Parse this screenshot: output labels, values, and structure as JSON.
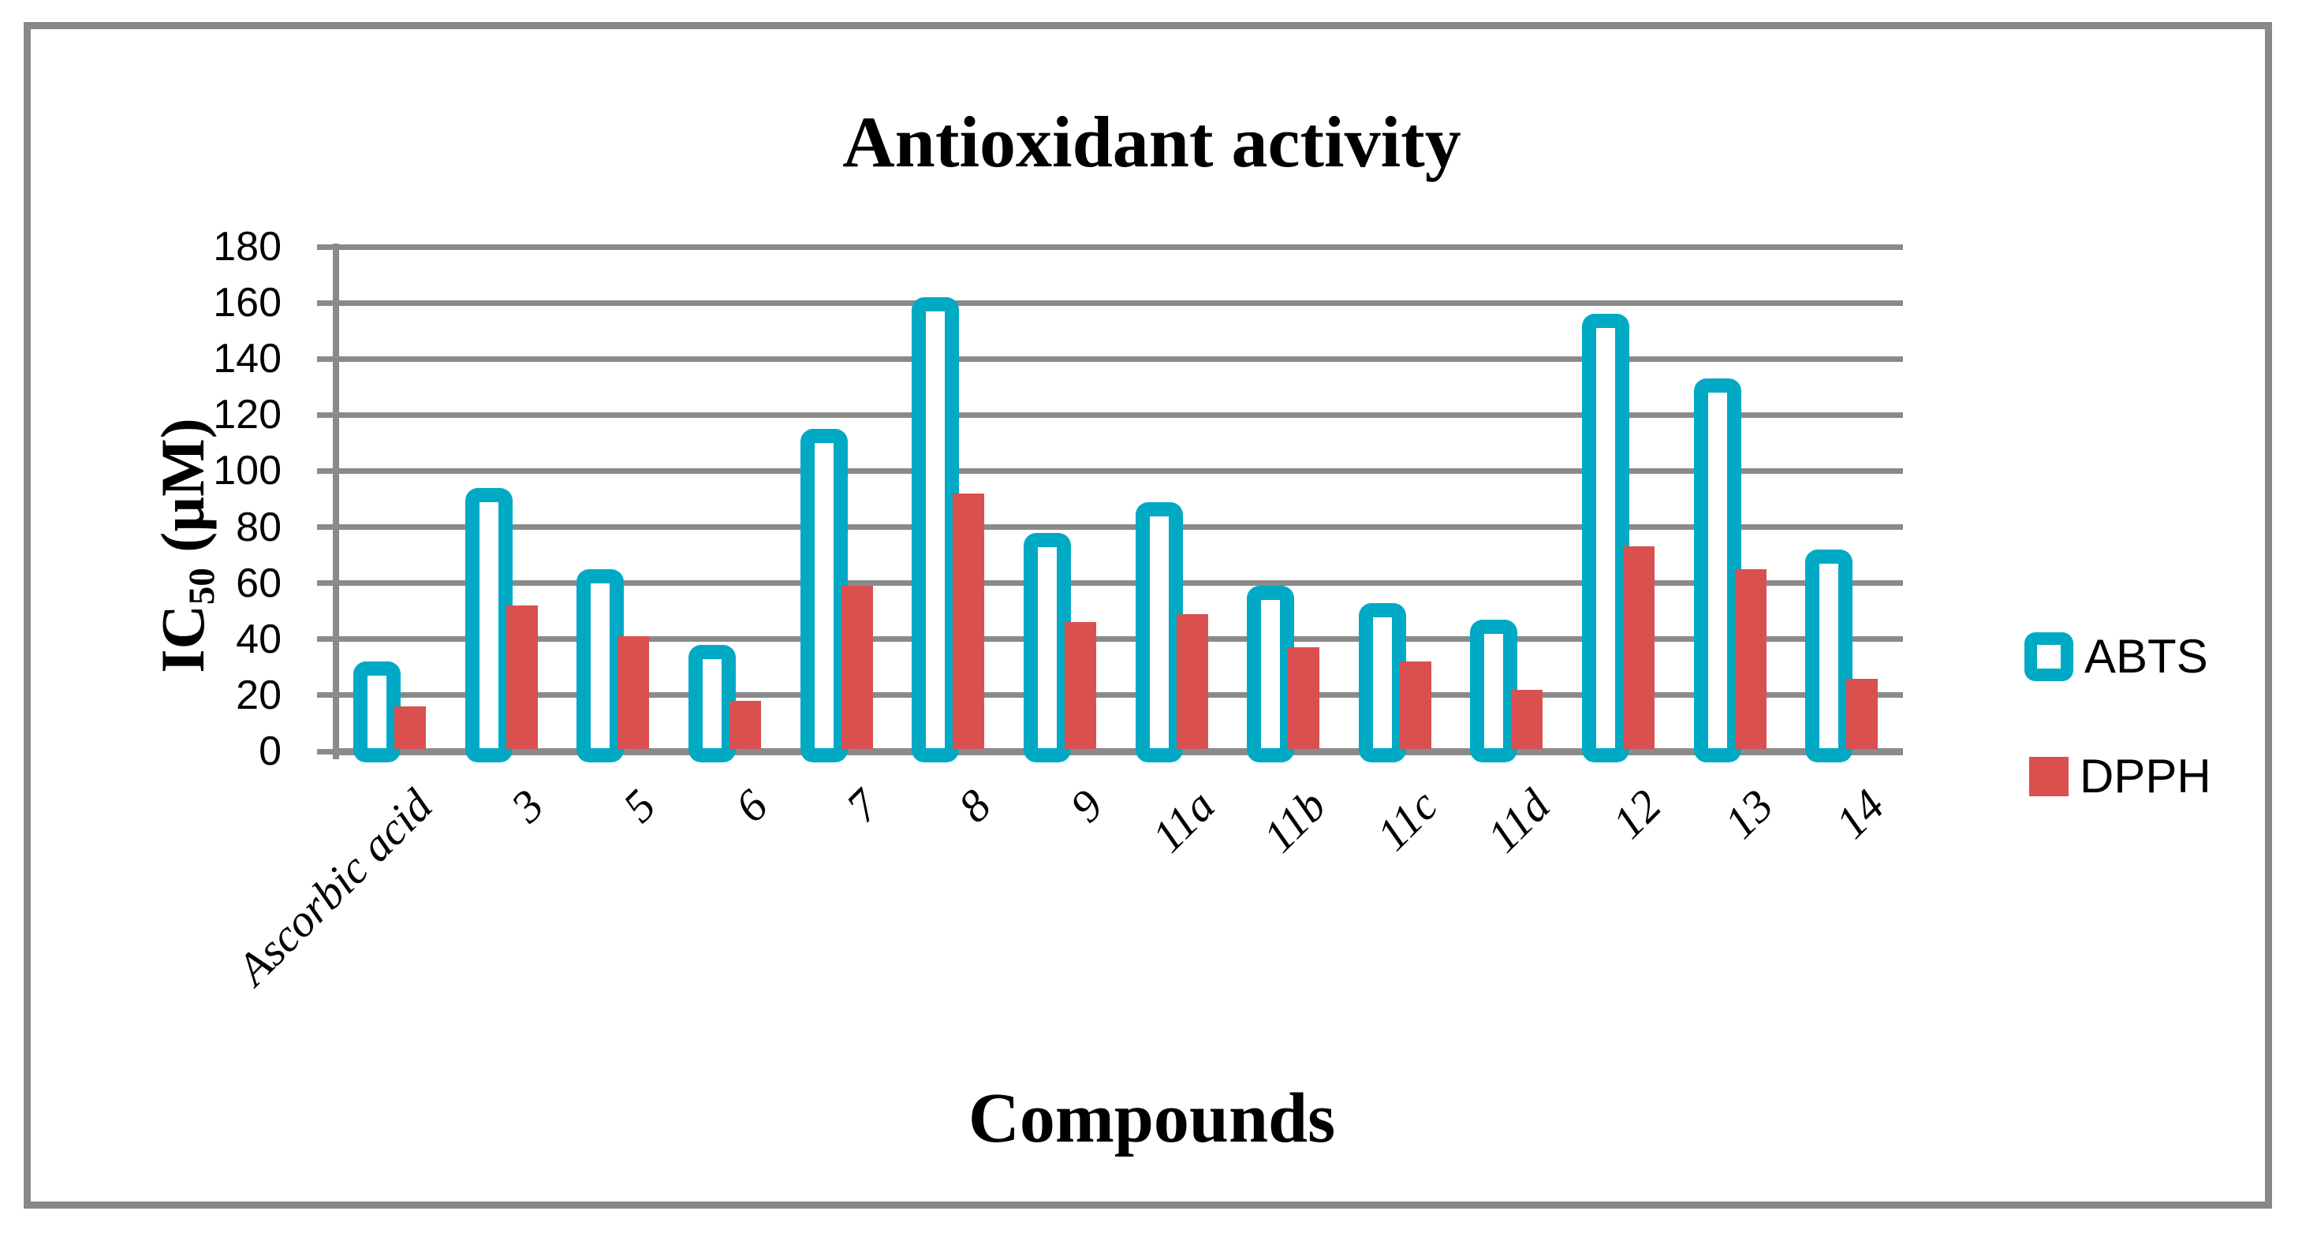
{
  "figure": {
    "frame_color": "#888888",
    "background": "#FFFFFF"
  },
  "chart_data": {
    "type": "bar",
    "title": "Antioxidant activity",
    "xlabel": "Compounds",
    "ylabel": {
      "base": "IC",
      "sub": "50",
      "unit": " (µM)"
    },
    "categories": [
      "Ascorbic acid",
      "3",
      "5",
      "6",
      "7",
      "8",
      "9",
      "11a",
      "11b",
      "11c",
      "11d",
      "12",
      "13",
      "14"
    ],
    "series": [
      {
        "name": "ABTS",
        "style": "outlined",
        "color": "#00A9C4",
        "values": [
          32,
          94,
          65,
          38,
          115,
          162,
          78,
          89,
          59,
          53,
          47,
          156,
          133,
          72
        ]
      },
      {
        "name": "DPPH",
        "style": "solid",
        "color": "#D9504F",
        "values": [
          16,
          52,
          41,
          18,
          59,
          92,
          46,
          49,
          37,
          32,
          22,
          73,
          65,
          26
        ]
      }
    ],
    "ylim": [
      0,
      180
    ],
    "yticks": [
      0,
      20,
      40,
      60,
      80,
      100,
      120,
      140,
      160,
      180
    ],
    "grid": "horizontal",
    "gridline_color": "#8A8A8A",
    "axis_color": "#8A8A8A",
    "legend_position": "right"
  }
}
